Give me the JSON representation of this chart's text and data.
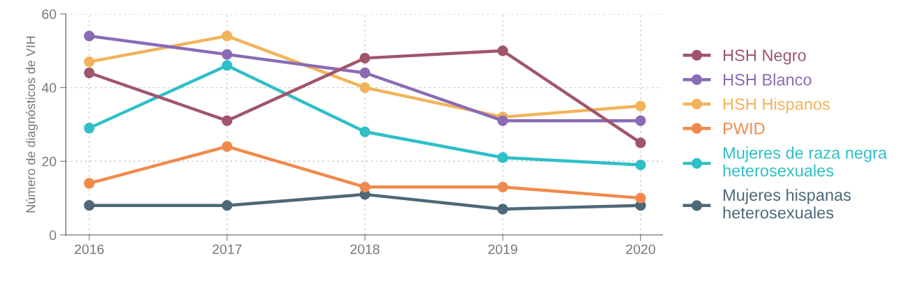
{
  "chart_data": {
    "type": "line",
    "ylabel": "Número de diagnósticos de VIH",
    "categories": [
      "2016",
      "2017",
      "2018",
      "2019",
      "2020"
    ],
    "series": [
      {
        "name": "HSH Negro",
        "color": "#a0566a",
        "values": [
          44,
          31,
          48,
          50,
          25
        ]
      },
      {
        "name": "HSH Blanco",
        "color": "#8a6bb5",
        "values": [
          54,
          49,
          44,
          31,
          31
        ]
      },
      {
        "name": "HSH Hispanos",
        "color": "#f2b35a",
        "values": [
          47,
          54,
          40,
          32,
          35
        ]
      },
      {
        "name": "PWID",
        "color": "#f08a4b",
        "values": [
          14,
          24,
          13,
          13,
          10
        ]
      },
      {
        "name": "Mujeres de raza negra heterosexuales",
        "color": "#2fbfc7",
        "values": [
          29,
          46,
          28,
          21,
          19
        ]
      },
      {
        "name": "Mujeres hispanas heterosexuales",
        "color": "#4d6878",
        "values": [
          8,
          8,
          11,
          7,
          8
        ]
      }
    ],
    "ylim": [
      0,
      60
    ],
    "yticks": [
      0,
      20,
      40,
      60
    ],
    "grid": true,
    "legend": "right",
    "marker": "circle",
    "line_style": "solid"
  }
}
